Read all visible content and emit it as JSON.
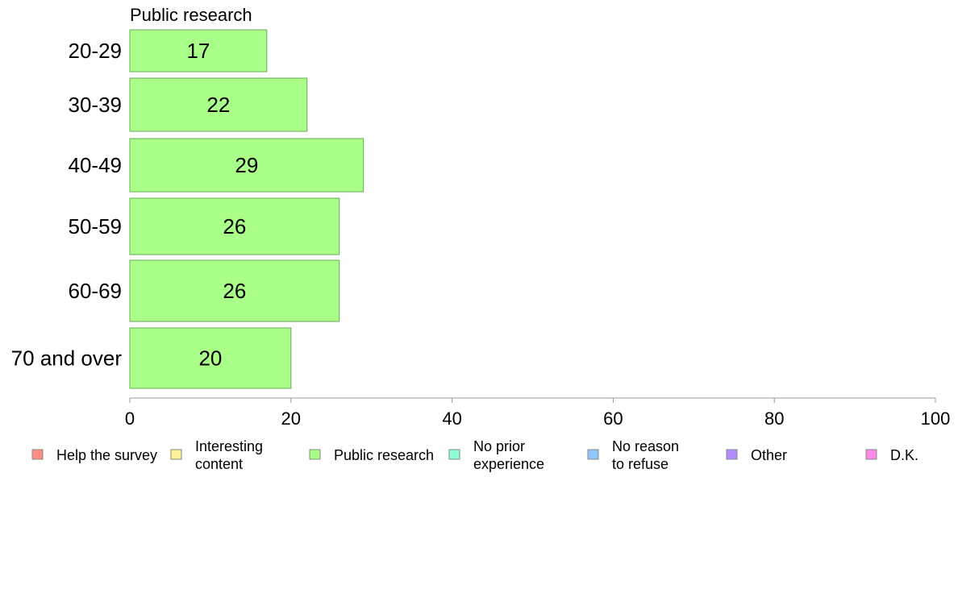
{
  "chart_data": {
    "type": "bar",
    "orientation": "horizontal",
    "title": "Public research",
    "xlabel": "",
    "ylabel": "",
    "categories": [
      "20-29",
      "30-39",
      "40-49",
      "50-59",
      "60-69",
      "70 and over"
    ],
    "series": [
      {
        "name": "Public research",
        "color": "#aaff88",
        "values": [
          17,
          22,
          29,
          26,
          26,
          20
        ]
      }
    ],
    "xlim": [
      0,
      100
    ],
    "xticks": [
      0,
      20,
      40,
      60,
      80,
      100
    ],
    "grid": false,
    "legend": {
      "placement": "bottom",
      "entries": [
        {
          "lines": [
            "Help the survey"
          ],
          "color": "#ff8c85"
        },
        {
          "lines": [
            "Interesting",
            "content"
          ],
          "color": "#fff09a"
        },
        {
          "lines": [
            "Public research"
          ],
          "color": "#aaff88"
        },
        {
          "lines": [
            "No prior",
            "experience"
          ],
          "color": "#8cffd5"
        },
        {
          "lines": [
            "No reason",
            "to refuse"
          ],
          "color": "#8cc8ff"
        },
        {
          "lines": [
            "Other"
          ],
          "color": "#b08cff"
        },
        {
          "lines": [
            "D.K."
          ],
          "color": "#ff88e8"
        }
      ]
    }
  }
}
